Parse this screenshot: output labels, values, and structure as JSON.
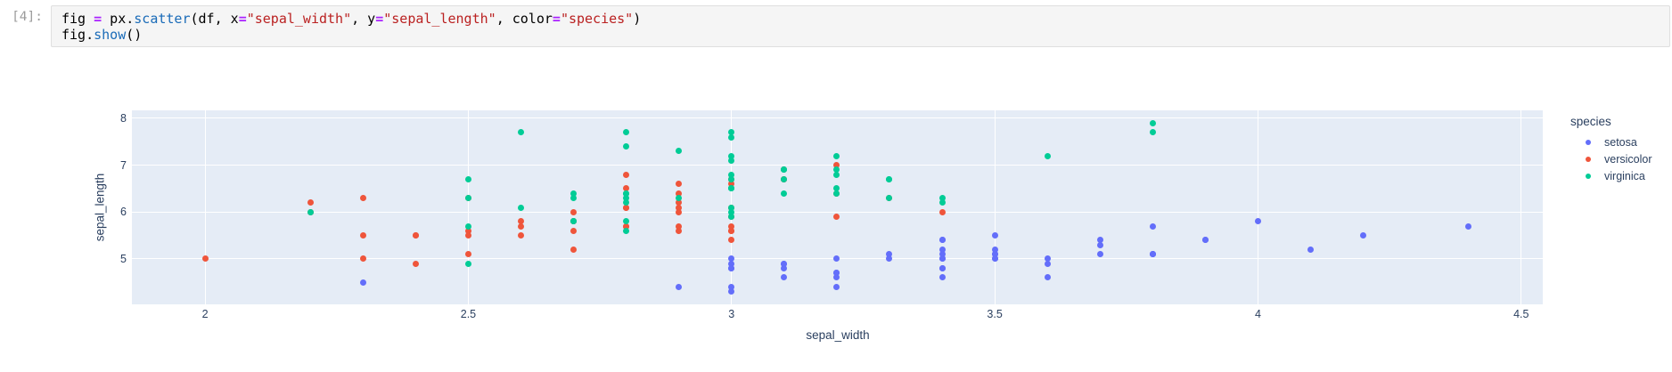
{
  "notebook": {
    "prompt": "[4]:",
    "code_lines": [
      [
        [
          "p",
          "fig "
        ],
        [
          "o",
          "="
        ],
        [
          "p",
          " px."
        ],
        [
          "f",
          "scatter"
        ],
        [
          "p",
          "(df, x"
        ],
        [
          "o",
          "="
        ],
        [
          "s",
          "\"sepal_width\""
        ],
        [
          "p",
          ", y"
        ],
        [
          "o",
          "="
        ],
        [
          "s",
          "\"sepal_length\""
        ],
        [
          "p",
          ", color"
        ],
        [
          "o",
          "="
        ],
        [
          "s",
          "\"species\""
        ],
        [
          "p",
          ")"
        ]
      ],
      [
        [
          "p",
          "fig."
        ],
        [
          "f",
          "show"
        ],
        [
          "p",
          "()"
        ]
      ]
    ]
  },
  "chart_data": {
    "type": "scatter",
    "title": "",
    "xlabel": "sepal_width",
    "ylabel": "sepal_length",
    "xlim": [
      1.861,
      4.541
    ],
    "ylim": [
      4.03,
      8.17
    ],
    "grid": true,
    "plot_bg": "#e5ecf6",
    "grid_color": "#ffffff",
    "text_color": "#2a3f5f",
    "legend_title": "species",
    "legend_position": "right",
    "x_ticks": [
      {
        "v": 2,
        "label": "2"
      },
      {
        "v": 2.5,
        "label": "2.5"
      },
      {
        "v": 3,
        "label": "3"
      },
      {
        "v": 3.5,
        "label": "3.5"
      },
      {
        "v": 4,
        "label": "4"
      },
      {
        "v": 4.5,
        "label": "4.5"
      }
    ],
    "y_ticks": [
      {
        "v": 5,
        "label": "5"
      },
      {
        "v": 6,
        "label": "6"
      },
      {
        "v": 7,
        "label": "7"
      },
      {
        "v": 8,
        "label": "8"
      }
    ],
    "series": [
      {
        "name": "setosa",
        "color": "#636efa",
        "points": [
          [
            3.5,
            5.1
          ],
          [
            3.0,
            4.9
          ],
          [
            3.2,
            4.7
          ],
          [
            3.1,
            4.6
          ],
          [
            3.6,
            5.0
          ],
          [
            3.9,
            5.4
          ],
          [
            3.4,
            4.6
          ],
          [
            3.4,
            5.0
          ],
          [
            2.9,
            4.4
          ],
          [
            3.1,
            4.9
          ],
          [
            3.7,
            5.4
          ],
          [
            3.4,
            4.8
          ],
          [
            3.0,
            4.8
          ],
          [
            3.0,
            4.3
          ],
          [
            4.0,
            5.8
          ],
          [
            4.4,
            5.7
          ],
          [
            3.9,
            5.4
          ],
          [
            3.5,
            5.1
          ],
          [
            3.8,
            5.7
          ],
          [
            3.8,
            5.1
          ],
          [
            3.4,
            5.4
          ],
          [
            3.7,
            5.1
          ],
          [
            3.6,
            4.6
          ],
          [
            3.3,
            5.1
          ],
          [
            3.4,
            4.8
          ],
          [
            3.0,
            5.0
          ],
          [
            3.4,
            5.0
          ],
          [
            3.5,
            5.2
          ],
          [
            3.4,
            5.2
          ],
          [
            3.2,
            4.7
          ],
          [
            3.1,
            4.8
          ],
          [
            3.4,
            5.4
          ],
          [
            4.1,
            5.2
          ],
          [
            4.2,
            5.5
          ],
          [
            3.1,
            4.9
          ],
          [
            3.2,
            5.0
          ],
          [
            3.5,
            5.5
          ],
          [
            3.6,
            4.9
          ],
          [
            3.0,
            4.4
          ],
          [
            3.4,
            5.1
          ],
          [
            3.5,
            5.0
          ],
          [
            2.3,
            4.5
          ],
          [
            3.2,
            4.4
          ],
          [
            3.5,
            5.0
          ],
          [
            3.8,
            5.1
          ],
          [
            3.0,
            4.8
          ],
          [
            3.8,
            5.1
          ],
          [
            3.2,
            4.6
          ],
          [
            3.7,
            5.3
          ],
          [
            3.3,
            5.0
          ]
        ]
      },
      {
        "name": "versicolor",
        "color": "#ef553b",
        "points": [
          [
            3.2,
            7.0
          ],
          [
            3.2,
            6.4
          ],
          [
            3.1,
            6.9
          ],
          [
            2.3,
            5.5
          ],
          [
            2.8,
            6.5
          ],
          [
            2.8,
            5.7
          ],
          [
            3.3,
            6.3
          ],
          [
            2.4,
            4.9
          ],
          [
            2.9,
            6.6
          ],
          [
            2.7,
            5.2
          ],
          [
            2.0,
            5.0
          ],
          [
            3.0,
            5.9
          ],
          [
            2.2,
            6.0
          ],
          [
            2.9,
            6.1
          ],
          [
            2.9,
            5.6
          ],
          [
            3.1,
            6.7
          ],
          [
            3.0,
            5.6
          ],
          [
            2.7,
            5.8
          ],
          [
            2.2,
            6.2
          ],
          [
            2.5,
            5.6
          ],
          [
            3.2,
            5.9
          ],
          [
            2.8,
            6.1
          ],
          [
            2.5,
            6.3
          ],
          [
            2.8,
            6.1
          ],
          [
            2.9,
            6.4
          ],
          [
            3.0,
            6.6
          ],
          [
            2.8,
            6.8
          ],
          [
            3.0,
            6.7
          ],
          [
            2.9,
            6.0
          ],
          [
            2.6,
            5.7
          ],
          [
            2.4,
            5.5
          ],
          [
            2.4,
            5.5
          ],
          [
            2.7,
            5.8
          ],
          [
            2.7,
            6.0
          ],
          [
            3.0,
            5.4
          ],
          [
            3.4,
            6.0
          ],
          [
            3.1,
            6.7
          ],
          [
            2.3,
            6.3
          ],
          [
            3.0,
            5.6
          ],
          [
            2.5,
            5.5
          ],
          [
            2.6,
            5.5
          ],
          [
            3.0,
            6.1
          ],
          [
            2.6,
            5.8
          ],
          [
            2.3,
            5.0
          ],
          [
            2.7,
            5.6
          ],
          [
            3.0,
            5.7
          ],
          [
            2.9,
            5.7
          ],
          [
            2.9,
            6.2
          ],
          [
            2.5,
            5.1
          ],
          [
            2.8,
            5.7
          ]
        ]
      },
      {
        "name": "virginica",
        "color": "#00cc96",
        "points": [
          [
            3.3,
            6.3
          ],
          [
            2.7,
            5.8
          ],
          [
            3.0,
            7.1
          ],
          [
            2.9,
            6.3
          ],
          [
            3.0,
            6.5
          ],
          [
            3.0,
            7.6
          ],
          [
            2.5,
            4.9
          ],
          [
            2.9,
            7.3
          ],
          [
            2.5,
            6.7
          ],
          [
            3.6,
            7.2
          ],
          [
            3.2,
            6.5
          ],
          [
            2.7,
            6.4
          ],
          [
            3.0,
            6.8
          ],
          [
            2.5,
            5.7
          ],
          [
            2.8,
            5.8
          ],
          [
            3.2,
            6.4
          ],
          [
            3.0,
            6.5
          ],
          [
            3.8,
            7.7
          ],
          [
            2.6,
            7.7
          ],
          [
            2.2,
            6.0
          ],
          [
            3.2,
            6.9
          ],
          [
            2.8,
            5.6
          ],
          [
            2.8,
            7.7
          ],
          [
            2.7,
            6.3
          ],
          [
            3.3,
            6.7
          ],
          [
            3.2,
            7.2
          ],
          [
            2.8,
            6.2
          ],
          [
            3.0,
            6.1
          ],
          [
            2.8,
            6.4
          ],
          [
            3.0,
            7.2
          ],
          [
            2.8,
            7.4
          ],
          [
            3.8,
            7.9
          ],
          [
            2.8,
            6.4
          ],
          [
            2.8,
            6.3
          ],
          [
            2.6,
            6.1
          ],
          [
            3.0,
            7.7
          ],
          [
            3.4,
            6.3
          ],
          [
            3.1,
            6.4
          ],
          [
            3.0,
            6.0
          ],
          [
            3.1,
            6.9
          ],
          [
            3.1,
            6.7
          ],
          [
            3.1,
            6.9
          ],
          [
            2.7,
            5.8
          ],
          [
            3.2,
            6.8
          ],
          [
            3.3,
            6.7
          ],
          [
            3.0,
            6.7
          ],
          [
            2.5,
            6.3
          ],
          [
            3.0,
            6.5
          ],
          [
            3.4,
            6.2
          ],
          [
            3.0,
            5.9
          ]
        ]
      }
    ]
  }
}
